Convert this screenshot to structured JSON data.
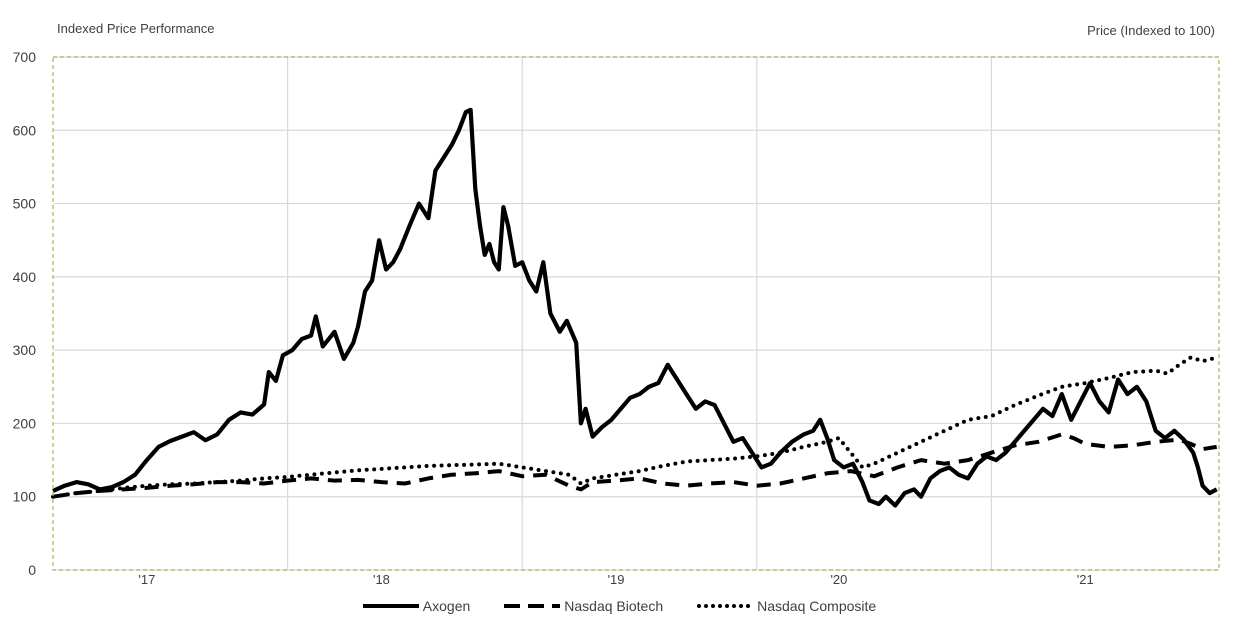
{
  "header": {
    "left_title": "Indexed Price Performance",
    "right_title": "Price (Indexed to 100)"
  },
  "colors": {
    "line": "#000000",
    "grid": "#d9d9d9",
    "frame": "#9bbb59",
    "text": "#404040"
  },
  "chart_data": {
    "type": "line",
    "title": "Indexed Price Performance",
    "ylabel": "Price (Indexed to 100)",
    "xlabel": "",
    "ylim": [
      0,
      700
    ],
    "yticks": [
      0,
      100,
      200,
      300,
      400,
      500,
      600,
      700
    ],
    "xlim": [
      2016.7,
      2021.67
    ],
    "x_tick_labels": [
      {
        "label": "'17",
        "x": 2017.1
      },
      {
        "label": "'18",
        "x": 2018.1
      },
      {
        "label": "'19",
        "x": 2019.1
      },
      {
        "label": "'20",
        "x": 2020.05
      },
      {
        "label": "'21",
        "x": 2021.1
      }
    ],
    "x_gridlines": [
      2017.7,
      2018.7,
      2019.7,
      2020.7
    ],
    "grid": true,
    "legend_position": "bottom",
    "series": [
      {
        "name": "Axogen",
        "style": "solid",
        "points": [
          [
            2016.7,
            108
          ],
          [
            2016.75,
            115
          ],
          [
            2016.8,
            120
          ],
          [
            2016.85,
            117
          ],
          [
            2016.9,
            110
          ],
          [
            2016.95,
            113
          ],
          [
            2017.0,
            120
          ],
          [
            2017.05,
            130
          ],
          [
            2017.1,
            150
          ],
          [
            2017.15,
            168
          ],
          [
            2017.2,
            176
          ],
          [
            2017.25,
            182
          ],
          [
            2017.3,
            188
          ],
          [
            2017.35,
            177
          ],
          [
            2017.4,
            185
          ],
          [
            2017.45,
            205
          ],
          [
            2017.5,
            215
          ],
          [
            2017.55,
            212
          ],
          [
            2017.6,
            226
          ],
          [
            2017.62,
            270
          ],
          [
            2017.65,
            258
          ],
          [
            2017.68,
            293
          ],
          [
            2017.72,
            300
          ],
          [
            2017.76,
            315
          ],
          [
            2017.8,
            320
          ],
          [
            2017.82,
            346
          ],
          [
            2017.85,
            305
          ],
          [
            2017.9,
            325
          ],
          [
            2017.94,
            288
          ],
          [
            2017.98,
            310
          ],
          [
            2018.0,
            332
          ],
          [
            2018.03,
            380
          ],
          [
            2018.06,
            395
          ],
          [
            2018.09,
            450
          ],
          [
            2018.12,
            410
          ],
          [
            2018.15,
            420
          ],
          [
            2018.18,
            438
          ],
          [
            2018.22,
            470
          ],
          [
            2018.26,
            500
          ],
          [
            2018.3,
            480
          ],
          [
            2018.33,
            545
          ],
          [
            2018.36,
            560
          ],
          [
            2018.4,
            580
          ],
          [
            2018.43,
            600
          ],
          [
            2018.46,
            625
          ],
          [
            2018.48,
            628
          ],
          [
            2018.5,
            520
          ],
          [
            2018.52,
            470
          ],
          [
            2018.54,
            430
          ],
          [
            2018.56,
            445
          ],
          [
            2018.58,
            420
          ],
          [
            2018.6,
            410
          ],
          [
            2018.62,
            495
          ],
          [
            2018.64,
            470
          ],
          [
            2018.67,
            415
          ],
          [
            2018.7,
            420
          ],
          [
            2018.73,
            395
          ],
          [
            2018.76,
            380
          ],
          [
            2018.79,
            420
          ],
          [
            2018.82,
            350
          ],
          [
            2018.86,
            325
          ],
          [
            2018.89,
            340
          ],
          [
            2018.93,
            310
          ],
          [
            2018.95,
            200
          ],
          [
            2018.97,
            220
          ],
          [
            2019.0,
            182
          ],
          [
            2019.04,
            195
          ],
          [
            2019.08,
            205
          ],
          [
            2019.12,
            220
          ],
          [
            2019.16,
            235
          ],
          [
            2019.2,
            240
          ],
          [
            2019.24,
            250
          ],
          [
            2019.28,
            255
          ],
          [
            2019.32,
            280
          ],
          [
            2019.36,
            260
          ],
          [
            2019.4,
            240
          ],
          [
            2019.44,
            220
          ],
          [
            2019.48,
            230
          ],
          [
            2019.52,
            225
          ],
          [
            2019.56,
            200
          ],
          [
            2019.6,
            175
          ],
          [
            2019.64,
            180
          ],
          [
            2019.68,
            160
          ],
          [
            2019.72,
            140
          ],
          [
            2019.76,
            145
          ],
          [
            2019.8,
            160
          ],
          [
            2019.85,
            175
          ],
          [
            2019.9,
            185
          ],
          [
            2019.94,
            190
          ],
          [
            2019.97,
            205
          ],
          [
            2020.0,
            180
          ],
          [
            2020.03,
            150
          ],
          [
            2020.07,
            140
          ],
          [
            2020.11,
            145
          ],
          [
            2020.15,
            120
          ],
          [
            2020.18,
            95
          ],
          [
            2020.22,
            90
          ],
          [
            2020.25,
            100
          ],
          [
            2020.29,
            88
          ],
          [
            2020.33,
            105
          ],
          [
            2020.37,
            110
          ],
          [
            2020.4,
            100
          ],
          [
            2020.44,
            125
          ],
          [
            2020.48,
            135
          ],
          [
            2020.52,
            140
          ],
          [
            2020.56,
            130
          ],
          [
            2020.6,
            125
          ],
          [
            2020.64,
            145
          ],
          [
            2020.68,
            155
          ],
          [
            2020.72,
            150
          ],
          [
            2020.76,
            160
          ],
          [
            2020.8,
            175
          ],
          [
            2020.84,
            190
          ],
          [
            2020.88,
            205
          ],
          [
            2020.92,
            220
          ],
          [
            2020.96,
            210
          ],
          [
            2021.0,
            240
          ],
          [
            2021.04,
            205
          ],
          [
            2021.08,
            230
          ],
          [
            2021.12,
            255
          ],
          [
            2021.16,
            230
          ],
          [
            2021.2,
            215
          ],
          [
            2021.24,
            260
          ],
          [
            2021.28,
            240
          ],
          [
            2021.32,
            250
          ],
          [
            2021.36,
            230
          ],
          [
            2021.4,
            190
          ],
          [
            2021.44,
            180
          ],
          [
            2021.48,
            190
          ],
          [
            2021.52,
            178
          ],
          [
            2021.56,
            160
          ],
          [
            2021.58,
            140
          ],
          [
            2021.6,
            115
          ],
          [
            2021.63,
            105
          ],
          [
            2021.66,
            110
          ]
        ]
      },
      {
        "name": "Nasdaq Biotech",
        "style": "dash",
        "points": [
          [
            2016.7,
            100
          ],
          [
            2016.8,
            105
          ],
          [
            2016.9,
            108
          ],
          [
            2017.0,
            110
          ],
          [
            2017.1,
            112
          ],
          [
            2017.2,
            115
          ],
          [
            2017.3,
            117
          ],
          [
            2017.4,
            120
          ],
          [
            2017.5,
            120
          ],
          [
            2017.6,
            118
          ],
          [
            2017.7,
            122
          ],
          [
            2017.8,
            125
          ],
          [
            2017.9,
            122
          ],
          [
            2018.0,
            123
          ],
          [
            2018.1,
            120
          ],
          [
            2018.2,
            118
          ],
          [
            2018.3,
            125
          ],
          [
            2018.4,
            130
          ],
          [
            2018.5,
            132
          ],
          [
            2018.6,
            135
          ],
          [
            2018.7,
            128
          ],
          [
            2018.8,
            130
          ],
          [
            2018.9,
            115
          ],
          [
            2018.95,
            110
          ],
          [
            2019.0,
            120
          ],
          [
            2019.1,
            122
          ],
          [
            2019.2,
            125
          ],
          [
            2019.3,
            118
          ],
          [
            2019.4,
            115
          ],
          [
            2019.5,
            118
          ],
          [
            2019.6,
            120
          ],
          [
            2019.7,
            115
          ],
          [
            2019.8,
            118
          ],
          [
            2019.9,
            125
          ],
          [
            2020.0,
            132
          ],
          [
            2020.1,
            135
          ],
          [
            2020.2,
            128
          ],
          [
            2020.3,
            140
          ],
          [
            2020.4,
            150
          ],
          [
            2020.5,
            145
          ],
          [
            2020.6,
            150
          ],
          [
            2020.7,
            160
          ],
          [
            2020.8,
            170
          ],
          [
            2020.9,
            175
          ],
          [
            2021.0,
            185
          ],
          [
            2021.05,
            180
          ],
          [
            2021.1,
            172
          ],
          [
            2021.2,
            168
          ],
          [
            2021.3,
            170
          ],
          [
            2021.4,
            175
          ],
          [
            2021.5,
            178
          ],
          [
            2021.55,
            172
          ],
          [
            2021.6,
            165
          ],
          [
            2021.66,
            168
          ]
        ]
      },
      {
        "name": "Nasdaq Composite",
        "style": "dot",
        "points": [
          [
            2016.7,
            100
          ],
          [
            2016.8,
            105
          ],
          [
            2016.9,
            108
          ],
          [
            2017.0,
            112
          ],
          [
            2017.1,
            115
          ],
          [
            2017.2,
            117
          ],
          [
            2017.3,
            118
          ],
          [
            2017.4,
            120
          ],
          [
            2017.5,
            122
          ],
          [
            2017.6,
            125
          ],
          [
            2017.7,
            127
          ],
          [
            2017.8,
            130
          ],
          [
            2017.9,
            133
          ],
          [
            2018.0,
            136
          ],
          [
            2018.1,
            138
          ],
          [
            2018.2,
            140
          ],
          [
            2018.3,
            142
          ],
          [
            2018.4,
            143
          ],
          [
            2018.5,
            144
          ],
          [
            2018.6,
            145
          ],
          [
            2018.7,
            140
          ],
          [
            2018.8,
            135
          ],
          [
            2018.9,
            130
          ],
          [
            2018.95,
            118
          ],
          [
            2019.0,
            125
          ],
          [
            2019.1,
            130
          ],
          [
            2019.2,
            135
          ],
          [
            2019.3,
            142
          ],
          [
            2019.4,
            148
          ],
          [
            2019.5,
            150
          ],
          [
            2019.6,
            152
          ],
          [
            2019.7,
            155
          ],
          [
            2019.8,
            160
          ],
          [
            2019.9,
            168
          ],
          [
            2020.0,
            175
          ],
          [
            2020.05,
            180
          ],
          [
            2020.1,
            160
          ],
          [
            2020.15,
            140
          ],
          [
            2020.2,
            145
          ],
          [
            2020.3,
            160
          ],
          [
            2020.4,
            175
          ],
          [
            2020.5,
            190
          ],
          [
            2020.6,
            205
          ],
          [
            2020.7,
            210
          ],
          [
            2020.8,
            225
          ],
          [
            2020.9,
            238
          ],
          [
            2021.0,
            250
          ],
          [
            2021.1,
            255
          ],
          [
            2021.2,
            262
          ],
          [
            2021.3,
            270
          ],
          [
            2021.4,
            272
          ],
          [
            2021.45,
            268
          ],
          [
            2021.5,
            280
          ],
          [
            2021.55,
            290
          ],
          [
            2021.6,
            285
          ],
          [
            2021.66,
            290
          ]
        ]
      }
    ]
  }
}
